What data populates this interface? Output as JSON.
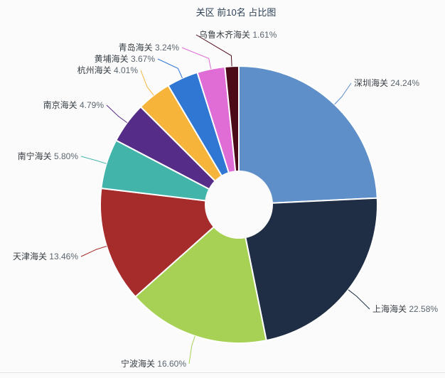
{
  "colors": {
    "background": "#fbfbfb",
    "title": "#2e4257",
    "label_name": "#383f45",
    "label_value": "#5c6670",
    "slice_border": "#ffffff",
    "panel_border": "#e3e3e3"
  },
  "chart_data": {
    "type": "pie",
    "subtype": "donut",
    "title": "关区 前10名 占比图",
    "legend_position": "none",
    "direction": "clockwise",
    "start_angle_deg": 0,
    "center": [
      336,
      288
    ],
    "outer_radius": 195,
    "inner_radius": 48,
    "value_suffix": "%",
    "items": [
      {
        "id": "shenzhen",
        "name": "深圳海关",
        "value": 24.24,
        "color": "#5e8fc8",
        "label_x": 498,
        "label_y": 117,
        "align": "start"
      },
      {
        "id": "shanghai",
        "name": "上海海关",
        "value": 22.58,
        "color": "#1f2e44",
        "label_x": 524,
        "label_y": 435,
        "align": "start"
      },
      {
        "id": "ningbo",
        "name": "宁波海关",
        "value": 16.6,
        "color": "#a6d155",
        "label_x": 262,
        "label_y": 512,
        "align": "end"
      },
      {
        "id": "tianjin",
        "name": "天津海关",
        "value": 13.46,
        "color": "#a62c2c",
        "label_x": 110,
        "label_y": 361,
        "align": "end"
      },
      {
        "id": "nanning",
        "name": "南宁海关",
        "value": 5.8,
        "color": "#43b4aa",
        "label_x": 110,
        "label_y": 220,
        "align": "end"
      },
      {
        "id": "nanjing",
        "name": "南京海关",
        "value": 4.79,
        "color": "#552c87",
        "label_x": 146,
        "label_y": 148,
        "align": "end"
      },
      {
        "id": "hangzhou",
        "name": "杭州海关",
        "value": 4.01,
        "color": "#f6b53a",
        "label_x": 194,
        "label_y": 99,
        "align": "end"
      },
      {
        "id": "huangpu",
        "name": "黄埔海关",
        "value": 3.67,
        "color": "#2f77d3",
        "label_x": 218,
        "label_y": 83,
        "align": "end"
      },
      {
        "id": "qingdao",
        "name": "青岛海关",
        "value": 3.24,
        "color": "#e06cd6",
        "label_x": 252,
        "label_y": 67,
        "align": "end"
      },
      {
        "id": "urumqi",
        "name": "乌鲁木齐海关",
        "value": 1.61,
        "color": "#4c0a18",
        "label_x": 280,
        "label_y": 49,
        "align": "start"
      }
    ]
  }
}
